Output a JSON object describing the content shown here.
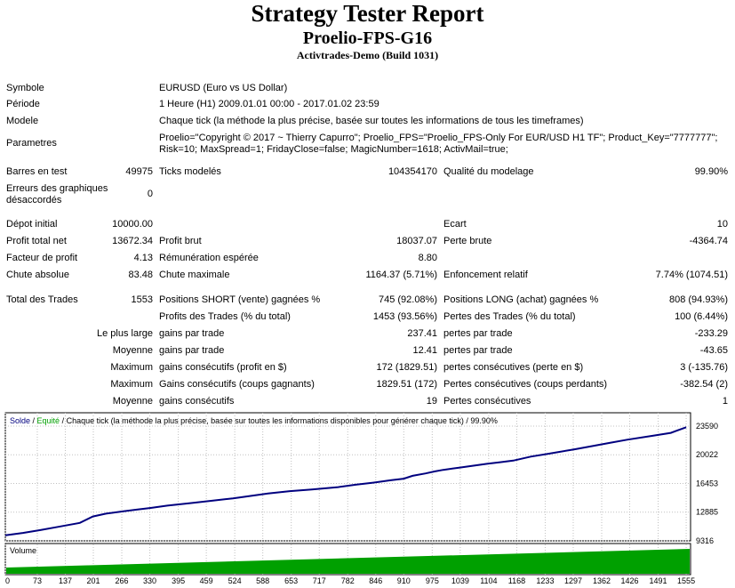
{
  "report": {
    "title": "Strategy Tester Report",
    "expert": "Proelio-FPS-G16",
    "server": "Activtrades-Demo (Build 1031)"
  },
  "info": {
    "symbol_label": "Symbole",
    "symbol_value": "EURUSD (Euro vs US Dollar)",
    "period_label": "Période",
    "period_value": "1 Heure (H1) 2009.01.01 00:00 - 2017.01.02 23:59",
    "model_label": "Modele",
    "model_value": "Chaque tick (la méthode la plus précise, basée sur toutes les informations de tous les timeframes)",
    "params_label": "Parametres",
    "params_line1": "Proelio=\"Copyright © 2017 ~ Thierry Capurro\"; Proelio_FPS=\"Proelio_FPS-Only For EUR/USD H1 TF\"; Product_Key=\"7777777\";",
    "params_line2": "Risk=10; MaxSpread=1; FridayClose=false; MagicNumber=1618; ActivMail=true;"
  },
  "stats": {
    "bars_label": "Barres en test",
    "bars_value": "49975",
    "ticks_label": "Ticks modelés",
    "ticks_value": "104354170",
    "quality_label": "Qualité du modelage",
    "quality_value": "99.90%",
    "errors_label_1": "Erreurs des graphiques",
    "errors_label_2": "désaccordés",
    "errors_value": "0",
    "deposit_label": "Dépot initial",
    "deposit_value": "10000.00",
    "spread_label": "Ecart",
    "spread_value": "10",
    "net_label": "Profit total net",
    "net_value": "13672.34",
    "gross_profit_label": "Profit brut",
    "gross_profit_value": "18037.07",
    "gross_loss_label": "Perte brute",
    "gross_loss_value": "-4364.74",
    "pf_label": "Facteur de profit",
    "pf_value": "4.13",
    "payoff_label": "Rémunération espérée",
    "payoff_value": "8.80",
    "abs_dd_label": "Chute absolue",
    "abs_dd_value": "83.48",
    "max_dd_label": "Chute maximale",
    "max_dd_value": "1164.37 (5.71%)",
    "rel_dd_label": "Enfoncement relatif",
    "rel_dd_value": "7.74% (1074.51)",
    "total_trades_label": "Total des Trades",
    "total_trades_value": "1553",
    "short_label": "Positions SHORT (vente) gagnées %",
    "short_value": "745 (92.08%)",
    "long_label": "Positions LONG (achat) gagnées %",
    "long_value": "808 (94.93%)",
    "profit_trades_label": "Profits des Trades (% du total)",
    "profit_trades_value": "1453 (93.56%)",
    "loss_trades_label": "Pertes des Trades (% du total)",
    "loss_trades_value": "100 (6.44%)",
    "largest_label": "Le plus large",
    "largest_profit_label": "gains par trade",
    "largest_profit_value": "237.41",
    "largest_loss_label": "pertes par trade",
    "largest_loss_value": "-233.29",
    "average_label": "Moyenne",
    "average_profit_label": "gains par trade",
    "average_profit_value": "12.41",
    "average_loss_label": "pertes par trade",
    "average_loss_value": "-43.65",
    "maximum_label": "Maximum",
    "max_cons_wins_label": "gains consécutifs (profit en $)",
    "max_cons_wins_value": "172 (1829.51)",
    "max_cons_losses_label": "pertes consécutives (perte en $)",
    "max_cons_losses_value": "3 (-135.76)",
    "maximal_label": "Maximum",
    "maximal_wins_label": "Gains consécutifs (coups gagnants)",
    "maximal_wins_value": "1829.51 (172)",
    "maximal_losses_label": "Pertes consécutives (coups perdants)",
    "maximal_losses_value": "-382.54 (2)",
    "avg_cons_label": "Moyenne",
    "avg_cons_wins_label": "gains consécutifs",
    "avg_cons_wins_value": "19",
    "avg_cons_losses_label": "Pertes consécutives",
    "avg_cons_losses_value": "1"
  },
  "chart_data": {
    "type": "line",
    "legend": {
      "solde": "Solde",
      "sep1": " / ",
      "equity": "Equité",
      "sep2": " / ",
      "text": "Chaque tick (la méthode la plus précise, basée sur toutes les informations disponibles pour générer chaque tick) / 99.90%"
    },
    "y_ticks": [
      "23590",
      "20022",
      "16453",
      "12885",
      "9316"
    ],
    "y_tick_values": [
      23590,
      20022,
      16453,
      12885,
      9316
    ],
    "ylim": [
      9316,
      23590
    ],
    "x_ticks": [
      "0",
      "73",
      "137",
      "201",
      "266",
      "330",
      "395",
      "459",
      "524",
      "588",
      "653",
      "717",
      "782",
      "846",
      "910",
      "975",
      "1039",
      "1104",
      "1168",
      "1233",
      "1297",
      "1362",
      "1426",
      "1491",
      "1555"
    ],
    "x_tick_values": [
      0,
      73,
      137,
      201,
      266,
      330,
      395,
      459,
      524,
      588,
      653,
      717,
      782,
      846,
      910,
      975,
      1039,
      1104,
      1168,
      1233,
      1297,
      1362,
      1426,
      1491,
      1555
    ],
    "xlim": [
      0,
      1565
    ],
    "series": [
      {
        "name": "Solde",
        "color": "#00007f",
        "x": [
          0,
          40,
          80,
          120,
          170,
          200,
          230,
          270,
          300,
          330,
          370,
          420,
          470,
          520,
          560,
          600,
          650,
          700,
          760,
          800,
          840,
          880,
          910,
          930,
          960,
          980,
          1000,
          1040,
          1060,
          1080,
          1100,
          1130,
          1160,
          1200,
          1240,
          1300,
          1340,
          1380,
          1420,
          1480,
          1520,
          1555
        ],
        "values": [
          10000,
          10300,
          10650,
          11050,
          11550,
          12350,
          12700,
          13000,
          13200,
          13400,
          13700,
          14000,
          14300,
          14600,
          14900,
          15200,
          15500,
          15700,
          16000,
          16300,
          16550,
          16850,
          17050,
          17400,
          17700,
          17950,
          18150,
          18450,
          18600,
          18750,
          18900,
          19100,
          19300,
          19800,
          20150,
          20700,
          21100,
          21500,
          21900,
          22400,
          22750,
          23450
        ]
      }
    ],
    "volume": {
      "label": "Volume",
      "color": "#00a000"
    }
  }
}
